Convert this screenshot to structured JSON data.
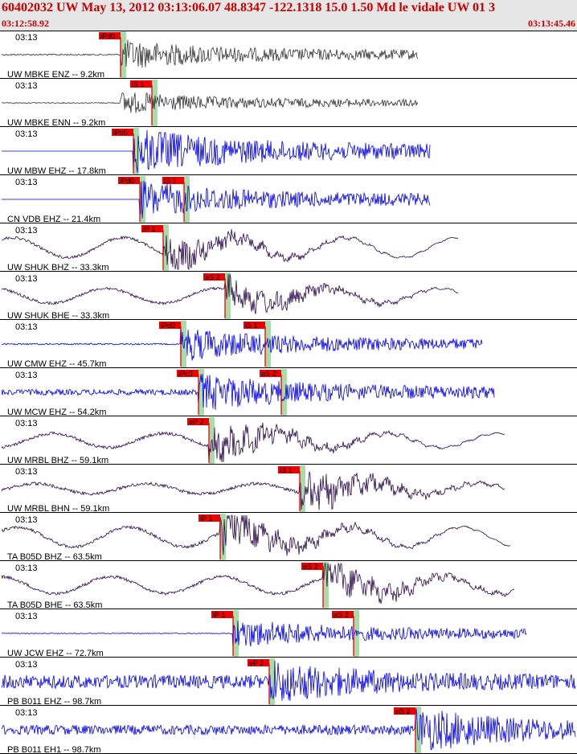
{
  "header": {
    "title": "60402032 UW May 13, 2012 03:13:06.07   48.8347 -122.1318 15.0 1.50 Md le vidale UW 01   3",
    "start_time": "03:12:58.92",
    "end_time": "03:13:45.46"
  },
  "colors": {
    "header_bg": "#e6e6e6",
    "header_text": "#cc0000",
    "pick_flag": "#ee0000",
    "pick_window": "#a8dca8",
    "trace_dark": "#333333",
    "trace_blue": "#0000ee",
    "trace_purple": "#2a0a4a"
  },
  "panels": [
    {
      "label": "UW MBKE ENZ -- 9.2km",
      "time": "03:13",
      "color": "#333333",
      "wave": "hf",
      "onset": 150,
      "end": 520,
      "amp": 16,
      "pre": 0.06,
      "picks": [
        {
          "text": "iPd0",
          "x": 150
        }
      ]
    },
    {
      "label": "UW MBKE ENN -- 9.2km",
      "time": "03:13",
      "color": "#333333",
      "wave": "hf",
      "onset": 150,
      "end": 520,
      "amp": 12,
      "pre": 0.05,
      "picks": [
        {
          "text": "iS 1",
          "x": 189
        }
      ]
    },
    {
      "label": "UW MBW EHZ -- 17.8km",
      "time": "03:13",
      "color": "#0000ee",
      "wave": "hf",
      "onset": 166,
      "end": 535,
      "amp": 25,
      "pre": 0.0,
      "picks": [
        {
          "text": "iPc0",
          "x": 166
        }
      ]
    },
    {
      "label": "CN VDB EHZ -- 21.4km",
      "time": "03:13",
      "color": "#0000ee",
      "wave": "hf",
      "onset": 174,
      "end": 535,
      "amp": 20,
      "pre": 0.0,
      "picks": [
        {
          "text": "iPd0",
          "x": 174
        },
        {
          "text": "iS 1",
          "x": 229
        }
      ]
    },
    {
      "label": "UW SHUK BHZ -- 33.3km",
      "time": "03:13",
      "color": "#2a0a4a",
      "wave": "lf",
      "onset": 203,
      "end": 570,
      "amp": 14,
      "pre": 0.4,
      "picks": [
        {
          "text": "iP 1",
          "x": 203
        }
      ]
    },
    {
      "label": "UW SHUK BHE -- 33.3km",
      "time": "03:13",
      "color": "#2a0a4a",
      "wave": "lf",
      "onset": 280,
      "end": 570,
      "amp": 14,
      "pre": 0.3,
      "picks": [
        {
          "text": "eS 2",
          "x": 280
        }
      ]
    },
    {
      "label": "UW CMW EHZ -- 45.7km",
      "time": "03:13",
      "color": "#0000ee",
      "wave": "hf",
      "onset": 225,
      "end": 600,
      "amp": 18,
      "pre": 0.05,
      "picks": [
        {
          "text": "iPd0",
          "x": 225
        },
        {
          "text": "iS 1",
          "x": 330
        }
      ]
    },
    {
      "label": "UW MCW EHZ -- 54.2km",
      "time": "03:13",
      "color": "#0000ee",
      "wave": "hf",
      "onset": 247,
      "end": 615,
      "amp": 20,
      "pre": 0.18,
      "picks": [
        {
          "text": "iPc0",
          "x": 247
        },
        {
          "text": "eS 2",
          "x": 350
        }
      ]
    },
    {
      "label": "UW MRBL BHZ -- 59.1km",
      "time": "03:13",
      "color": "#2a0a4a",
      "wave": "lf",
      "onset": 260,
      "end": 628,
      "amp": 16,
      "pre": 0.25,
      "picks": [
        {
          "text": "eP 2",
          "x": 260
        }
      ]
    },
    {
      "label": "UW MRBL BHN -- 59.1km",
      "time": "03:13",
      "color": "#2a0a4a",
      "wave": "lf",
      "onset": 373,
      "end": 628,
      "amp": 16,
      "pre": 0.18,
      "picks": [
        {
          "text": "iS 1",
          "x": 373
        }
      ]
    },
    {
      "label": "TA B05D BHZ -- 63.5km",
      "time": "03:13",
      "color": "#2a0a4a",
      "wave": "lf",
      "onset": 274,
      "end": 635,
      "amp": 16,
      "pre": 0.35,
      "picks": [
        {
          "text": "iP 1",
          "x": 274
        }
      ]
    },
    {
      "label": "TA B05D BHE -- 63.5km",
      "time": "03:13",
      "color": "#2a0a4a",
      "wave": "lf",
      "onset": 402,
      "end": 640,
      "amp": 16,
      "pre": 0.3,
      "picks": [
        {
          "text": "eS 2",
          "x": 402
        }
      ]
    },
    {
      "label": "UW JCW EHZ -- 72.7km",
      "time": "03:13",
      "color": "#0000ee",
      "wave": "hf",
      "onset": 290,
      "end": 655,
      "amp": 16,
      "pre": 0.03,
      "picks": [
        {
          "text": "iP 1",
          "x": 290
        },
        {
          "text": "eS 2",
          "x": 440
        }
      ]
    },
    {
      "label": "PB B011 EHZ -- 98.7km",
      "time": "03:13",
      "color": "#0000ee",
      "wave": "hf",
      "onset": 335,
      "end": 718,
      "amp": 24,
      "pre": 0.35,
      "picks": [
        {
          "text": "eP 2",
          "x": 335
        }
      ]
    },
    {
      "label": "PB B011 EH1 -- 98.7km",
      "time": "03:13",
      "color": "#0000ee",
      "wave": "hf",
      "onset": 517,
      "end": 718,
      "amp": 24,
      "pre": 0.25,
      "picks": [
        {
          "text": "eS 2",
          "x": 517
        }
      ]
    }
  ]
}
